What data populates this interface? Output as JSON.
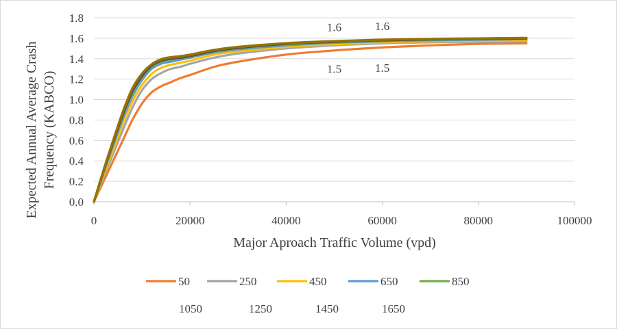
{
  "chart_data": {
    "type": "line",
    "title": "",
    "xlabel": "Major Aproach Traffic Volume (vpd)",
    "ylabel_lines": [
      "Expected Annual Average  Crash",
      "Frequency (KABCO)"
    ],
    "xlim": [
      0,
      100000
    ],
    "ylim": [
      0,
      1.8
    ],
    "x_ticks": [
      "0",
      "20000",
      "40000",
      "60000",
      "80000",
      "100000"
    ],
    "y_ticks": [
      "0.0",
      "0.2",
      "0.4",
      "0.6",
      "0.8",
      "1.0",
      "1.2",
      "1.4",
      "1.6",
      "1.8"
    ],
    "grid": "horizontal",
    "legend_position": "bottom",
    "x": [
      0,
      2000,
      4000,
      6000,
      8000,
      10000,
      12000,
      14000,
      16000,
      18000,
      20000,
      25000,
      30000,
      40000,
      50000,
      60000,
      70000,
      80000,
      90000
    ],
    "series": [
      {
        "name": "50",
        "color": "#ED7D31",
        "values": [
          0,
          0.2,
          0.4,
          0.6,
          0.8,
          0.96,
          1.07,
          1.13,
          1.17,
          1.21,
          1.24,
          1.32,
          1.37,
          1.44,
          1.48,
          1.51,
          1.53,
          1.545,
          1.55
        ]
      },
      {
        "name": "250",
        "color": "#A5A5A5",
        "values": [
          0,
          0.24,
          0.47,
          0.7,
          0.92,
          1.09,
          1.2,
          1.26,
          1.3,
          1.32,
          1.35,
          1.41,
          1.45,
          1.5,
          1.53,
          1.55,
          1.56,
          1.565,
          1.57
        ]
      },
      {
        "name": "450",
        "color": "#FFC000",
        "values": [
          0,
          0.26,
          0.51,
          0.76,
          0.98,
          1.14,
          1.25,
          1.31,
          1.34,
          1.36,
          1.38,
          1.44,
          1.47,
          1.515,
          1.54,
          1.56,
          1.57,
          1.575,
          1.58
        ]
      },
      {
        "name": "650",
        "color": "#5B9BD5",
        "values": [
          0,
          0.28,
          0.55,
          0.81,
          1.03,
          1.19,
          1.3,
          1.35,
          1.37,
          1.39,
          1.41,
          1.46,
          1.49,
          1.53,
          1.555,
          1.57,
          1.58,
          1.585,
          1.59
        ]
      },
      {
        "name": "850",
        "color": "#70AD47",
        "values": [
          0,
          0.29,
          0.57,
          0.84,
          1.06,
          1.22,
          1.32,
          1.37,
          1.39,
          1.405,
          1.42,
          1.47,
          1.5,
          1.54,
          1.56,
          1.575,
          1.585,
          1.59,
          1.595
        ]
      },
      {
        "name": "1050",
        "color": "#264478",
        "values": [
          0,
          0.3,
          0.58,
          0.85,
          1.08,
          1.23,
          1.33,
          1.38,
          1.4,
          1.41,
          1.425,
          1.475,
          1.505,
          1.545,
          1.565,
          1.58,
          1.588,
          1.593,
          1.598
        ]
      },
      {
        "name": "1250",
        "color": "#9E480E",
        "values": [
          0,
          0.3,
          0.59,
          0.86,
          1.09,
          1.24,
          1.335,
          1.385,
          1.405,
          1.415,
          1.43,
          1.48,
          1.51,
          1.548,
          1.568,
          1.582,
          1.59,
          1.595,
          1.6
        ]
      },
      {
        "name": "1450",
        "color": "#636363",
        "values": [
          0,
          0.31,
          0.6,
          0.87,
          1.1,
          1.25,
          1.34,
          1.39,
          1.41,
          1.42,
          1.435,
          1.483,
          1.513,
          1.55,
          1.57,
          1.584,
          1.592,
          1.597,
          1.602
        ]
      },
      {
        "name": "1650",
        "color": "#997300",
        "values": [
          0,
          0.31,
          0.6,
          0.88,
          1.11,
          1.255,
          1.345,
          1.395,
          1.415,
          1.425,
          1.44,
          1.486,
          1.516,
          1.552,
          1.572,
          1.586,
          1.594,
          1.599,
          1.604
        ]
      }
    ],
    "annotations": [
      {
        "text": "1.6",
        "x": 50000,
        "y": 1.71
      },
      {
        "text": "1.6",
        "x": 60000,
        "y": 1.72
      },
      {
        "text": "1.5",
        "x": 50000,
        "y": 1.3
      },
      {
        "text": "1.5",
        "x": 60000,
        "y": 1.31
      }
    ]
  }
}
